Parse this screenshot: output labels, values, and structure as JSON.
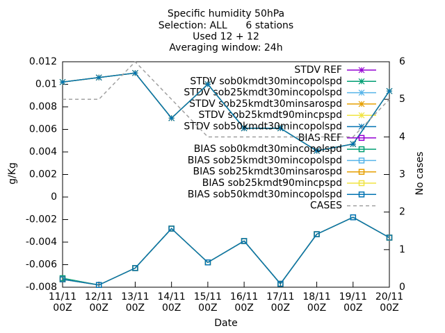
{
  "chart_data": {
    "type": "line",
    "title_lines": [
      "Specific humidity 50hPa",
      "Selection: ALL      6 stations",
      "Used 12 + 12",
      "Averaging window: 24h"
    ],
    "x_label": "Date",
    "y_label": "g/Kg",
    "y2_label": "No cases",
    "categories": [
      [
        "11/11",
        "00Z"
      ],
      [
        "12/11",
        "00Z"
      ],
      [
        "13/11",
        "00Z"
      ],
      [
        "14/11",
        "00Z"
      ],
      [
        "15/11",
        "00Z"
      ],
      [
        "16/11",
        "00Z"
      ],
      [
        "17/11",
        "00Z"
      ],
      [
        "18/11",
        "00Z"
      ],
      [
        "19/11",
        "00Z"
      ],
      [
        "20/11",
        "00Z"
      ]
    ],
    "ylim": [
      -0.008,
      0.012
    ],
    "yticks": [
      0.012,
      0.01,
      0.008,
      0.006,
      0.004,
      0.002,
      0,
      -0.002,
      -0.004,
      -0.006,
      -0.008
    ],
    "y2lim": [
      0,
      6
    ],
    "y2ticks": [
      0,
      1,
      2,
      3,
      4,
      5,
      6
    ],
    "legend": "top-right",
    "series": [
      {
        "name": "STDV REF",
        "color": "#9400d3",
        "marker": "star",
        "values": [
          0.0102,
          0.0106,
          0.011,
          0.007,
          0.01,
          0.0061,
          0.0061,
          0.0041,
          0.0047,
          0.0094
        ]
      },
      {
        "name": "STDV sob0kmdt30mincopolspd",
        "color": "#009e73",
        "marker": "star",
        "values": [
          0.0102,
          0.0106,
          0.011,
          0.007,
          0.01,
          0.0061,
          0.0061,
          0.0041,
          0.0047,
          0.0094
        ]
      },
      {
        "name": "STDV sob25kmdt30mincopolspd",
        "color": "#56b4e9",
        "marker": "star",
        "values": [
          0.0102,
          0.0106,
          0.011,
          0.007,
          0.01,
          0.0061,
          0.0061,
          0.0041,
          0.0047,
          0.0094
        ]
      },
      {
        "name": "STDV sob25kmdt30minsarospd",
        "color": "#e69f00",
        "marker": "star",
        "values": [
          0.0102,
          0.0106,
          0.011,
          0.007,
          0.01,
          0.0061,
          0.0061,
          0.0041,
          0.0047,
          0.0094
        ]
      },
      {
        "name": "STDV sob25kmdt90mincpspd",
        "color": "#f0e442",
        "marker": "star",
        "values": [
          0.0102,
          0.0106,
          0.011,
          0.007,
          0.01,
          0.0061,
          0.0061,
          0.0041,
          0.0047,
          0.0094
        ]
      },
      {
        "name": "STDV sob50kmdt30mincopolspd",
        "color": "#0072b2",
        "marker": "star",
        "values": [
          0.0102,
          0.0106,
          0.011,
          0.007,
          0.01,
          0.0061,
          0.0061,
          0.0041,
          0.0047,
          0.0094
        ]
      },
      {
        "name": "BIAS REF",
        "color": "#9400d3",
        "marker": "square",
        "values": [
          -0.0073,
          -0.0078,
          -0.0063,
          -0.0028,
          -0.0058,
          -0.0039,
          -0.0077,
          -0.0033,
          -0.0018,
          -0.0036
        ]
      },
      {
        "name": "BIAS sob0kmdt30mincopolspd",
        "color": "#009e73",
        "marker": "square",
        "values": [
          -0.0072,
          -0.0078,
          -0.0063,
          -0.0028,
          -0.0058,
          -0.0039,
          -0.0077,
          -0.0033,
          -0.0018,
          -0.0036
        ]
      },
      {
        "name": "BIAS sob25kmdt30mincopolspd",
        "color": "#56b4e9",
        "marker": "square",
        "values": [
          -0.0073,
          -0.0078,
          -0.0063,
          -0.0028,
          -0.0058,
          -0.0039,
          -0.0077,
          -0.0033,
          -0.0018,
          -0.0036
        ]
      },
      {
        "name": "BIAS sob25kmdt30minsarospd",
        "color": "#e69f00",
        "marker": "square",
        "values": [
          -0.0073,
          -0.0078,
          -0.0063,
          -0.0028,
          -0.0058,
          -0.0039,
          -0.0077,
          -0.0033,
          -0.0018,
          -0.0036
        ]
      },
      {
        "name": "BIAS sob25kmdt90mincpspd",
        "color": "#f0e442",
        "marker": "square",
        "values": [
          -0.0073,
          -0.0078,
          -0.0063,
          -0.0028,
          -0.0058,
          -0.0039,
          -0.0077,
          -0.0033,
          -0.0018,
          -0.0036
        ]
      },
      {
        "name": "BIAS sob50kmdt30mincopolspd",
        "color": "#0072b2",
        "marker": "square",
        "values": [
          -0.0073,
          -0.0078,
          -0.0063,
          -0.0028,
          -0.0058,
          -0.0039,
          -0.0077,
          -0.0033,
          -0.0018,
          -0.0036
        ]
      },
      {
        "name": "CASES",
        "color": "#a0a0a0",
        "marker": "none",
        "dashed": true,
        "axis": "y2",
        "values": [
          5,
          5,
          6,
          5,
          4,
          4,
          4,
          4,
          4,
          5
        ]
      }
    ]
  }
}
